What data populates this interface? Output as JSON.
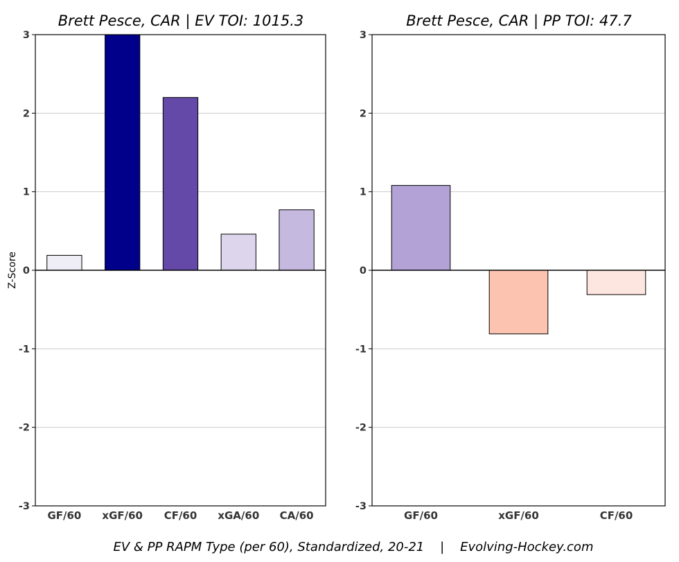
{
  "chart_data": [
    {
      "type": "bar",
      "title": "Brett Pesce, CAR  |  EV TOI: 1015.3",
      "ylabel": "Z-Score",
      "ylim": [
        -3,
        3
      ],
      "yticks": [
        "-3",
        "-2",
        "-1",
        "0",
        "1",
        "2",
        "3"
      ],
      "grid": true,
      "categories": [
        "GF/60",
        "xGF/60",
        "CF/60",
        "xGA/60",
        "CA/60"
      ],
      "values": [
        0.19,
        3.0,
        2.2,
        0.46,
        0.77
      ],
      "colors": [
        "#efedf5",
        "#00008b",
        "#6549a8",
        "#ddd5ec",
        "#c6b9e0"
      ]
    },
    {
      "type": "bar",
      "title": "Brett Pesce, CAR  |  PP TOI: 47.7",
      "ylabel": "",
      "ylim": [
        -3,
        3
      ],
      "yticks": [
        "-3",
        "-2",
        "-1",
        "0",
        "1",
        "2",
        "3"
      ],
      "grid": true,
      "categories": [
        "GF/60",
        "xGF/60",
        "CF/60"
      ],
      "values": [
        1.08,
        -0.81,
        -0.31
      ],
      "colors": [
        "#b3a2d6",
        "#fcc3b1",
        "#fde6df"
      ]
    }
  ],
  "caption": "EV & PP RAPM Type (per 60), Standardized, 20-21    |    Evolving-Hockey.com"
}
